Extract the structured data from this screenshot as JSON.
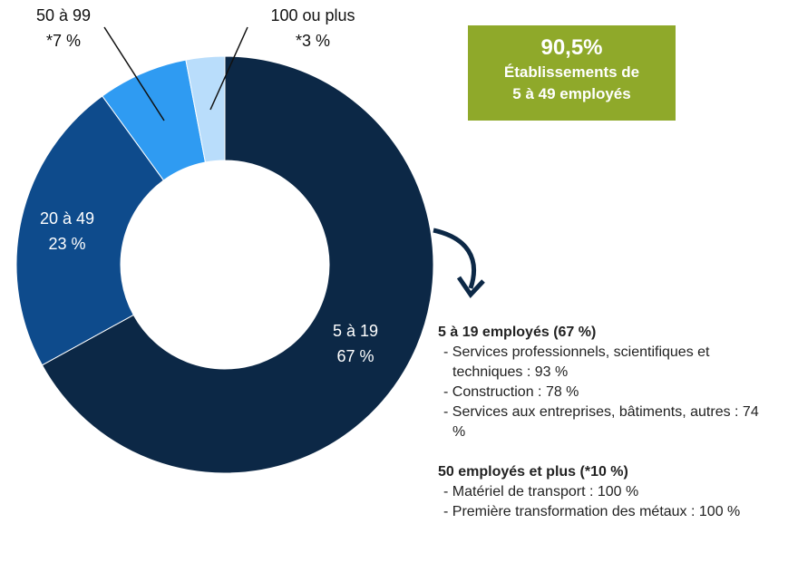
{
  "chart_data": {
    "type": "donut",
    "categories": [
      "5 à 19",
      "20 à 49",
      "50 à 99",
      "100 ou plus"
    ],
    "values": [
      67,
      23,
      7,
      3
    ],
    "value_labels": [
      "67 %",
      "23 %",
      "*7 %",
      "*3 %"
    ],
    "colors": [
      "#0c2846",
      "#0e4b8c",
      "#2f9bf2",
      "#b9ddfb"
    ],
    "callout": {
      "value": "90,5%",
      "lines": [
        "Établissements de",
        "5 à 49 employés"
      ]
    },
    "notes": [
      {
        "heading": "5 à 19 employés (67 %)",
        "items": [
          "Services professionnels, scientifiques et techniques : 93 %",
          "Construction : 78 %",
          "Services aux entreprises, bâtiments, autres : 74 %"
        ]
      },
      {
        "heading": "50 employés et plus (*10 %)",
        "items": [
          "Matériel de transport : 100 %",
          "Première transformation des métaux : 100 %"
        ]
      }
    ]
  }
}
